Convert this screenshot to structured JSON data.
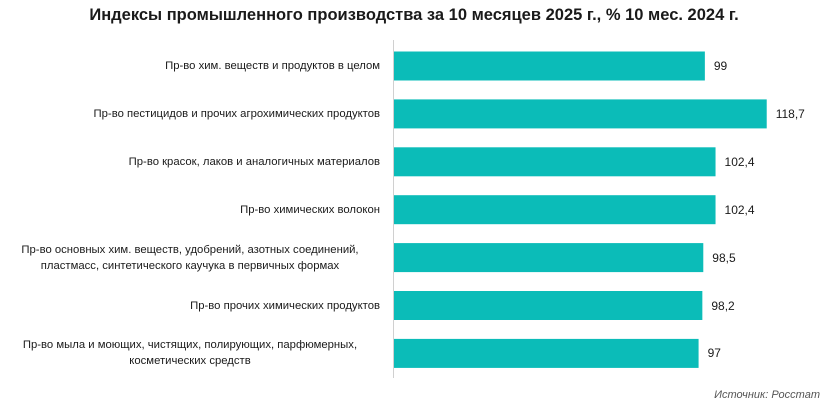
{
  "chart_data": {
    "type": "bar",
    "orientation": "horizontal",
    "title": "Индексы промышленного производства  за 10 месяцев 2025 г., % 10 мес. 2024 г.",
    "categories": [
      "Пр-во хим. веществ и продуктов в целом",
      "Пр-во пестицидов и прочих агрохимических продуктов",
      "Пр-во красок, лаков и аналогичных материалов",
      "Пр-во химических волокон",
      "Пр-во основных хим. веществ, удобрений, азотных соединений,\nпластмасс, синтетического  каучука  в первичных формах",
      "Пр-во прочих химических продуктов",
      "Пр-во мыла и моющих, чистящих, полирующих, парфюмерных,\nкосметических  средств"
    ],
    "values": [
      99,
      118.7,
      102.4,
      102.4,
      98.5,
      98.2,
      97
    ],
    "value_labels": [
      "99",
      "118,7",
      "102,4",
      "102,4",
      "98,5",
      "98,2",
      "97"
    ],
    "xlim": [
      0,
      125
    ],
    "grid": false,
    "bar_color": "#0bbcb8"
  },
  "source": "Источник: Росстат"
}
